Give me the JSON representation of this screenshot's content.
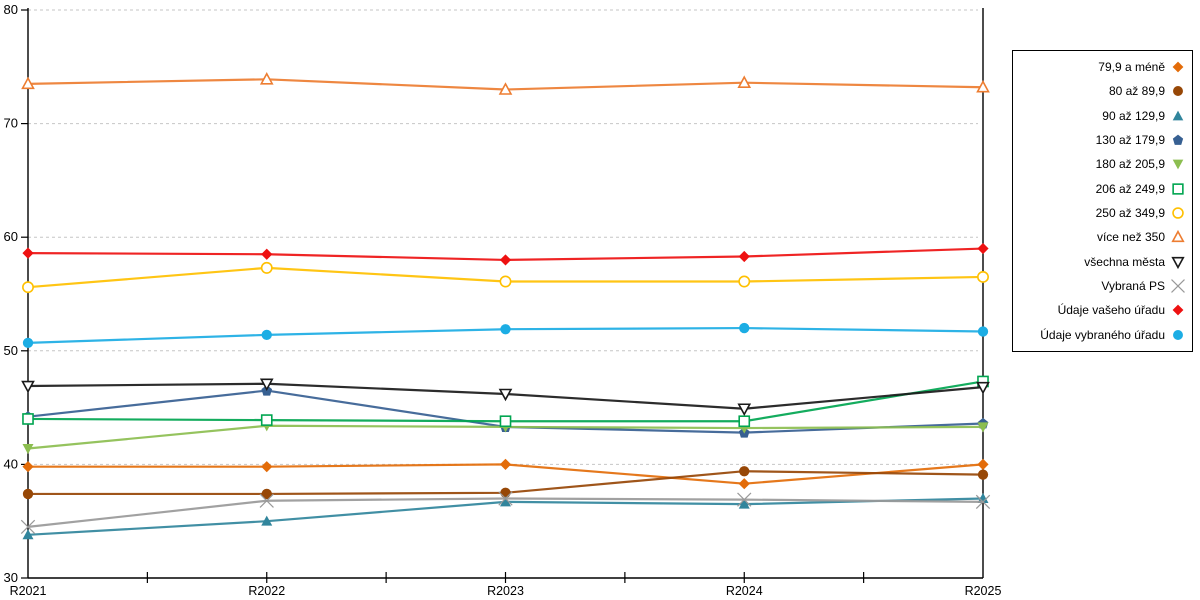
{
  "chart_data": {
    "type": "line",
    "x": [
      "R2021",
      "R2022",
      "R2023",
      "R2024",
      "R2025"
    ],
    "ylim": [
      30,
      80
    ],
    "yticks": [
      30,
      40,
      50,
      60,
      70,
      80
    ],
    "grid": "horizontal-dashed",
    "legend_position": "right-box",
    "highlight_vline_at": "R2025",
    "series": [
      {
        "name": "79,9 a méně",
        "marker": "diamond",
        "filled": true,
        "color": "#E36C09",
        "values": [
          39.8,
          39.8,
          40.0,
          38.3,
          40.0
        ]
      },
      {
        "name": "80 až 89,9",
        "marker": "circle",
        "filled": true,
        "color": "#974706",
        "values": [
          37.4,
          37.4,
          37.5,
          39.4,
          39.1
        ]
      },
      {
        "name": "90 až 129,9",
        "marker": "triangle-up",
        "filled": true,
        "color": "#31859C",
        "values": [
          33.8,
          35.0,
          36.7,
          36.5,
          37.0
        ]
      },
      {
        "name": "130 až 179,9",
        "marker": "pentagon",
        "filled": true,
        "color": "#376092",
        "values": [
          44.2,
          46.5,
          43.3,
          42.8,
          43.6
        ]
      },
      {
        "name": "180 až 205,9",
        "marker": "triangle-down",
        "filled": true,
        "color": "#8CBE50",
        "values": [
          41.4,
          43.4,
          43.3,
          43.2,
          43.3
        ]
      },
      {
        "name": "206 až 249,9",
        "marker": "square",
        "filled": false,
        "color": "#00A550",
        "values": [
          44.0,
          43.9,
          43.8,
          43.8,
          47.3
        ]
      },
      {
        "name": "250 až 349,9",
        "marker": "circle",
        "filled": false,
        "color": "#FFC000",
        "values": [
          55.6,
          57.3,
          56.1,
          56.1,
          56.5
        ]
      },
      {
        "name": "více než 350",
        "marker": "triangle-up",
        "filled": false,
        "color": "#ED7D31",
        "values": [
          73.5,
          73.9,
          73.0,
          73.6,
          73.2
        ]
      },
      {
        "name": "všechna města",
        "marker": "triangle-down",
        "filled": false,
        "color": "#1A1A1A",
        "values": [
          46.9,
          47.1,
          46.2,
          44.9,
          46.8
        ]
      },
      {
        "name": "Vybraná PS",
        "marker": "x",
        "filled": false,
        "color": "#999999",
        "values": [
          34.5,
          36.8,
          37.0,
          36.9,
          36.7
        ]
      },
      {
        "name": "Údaje vašeho úřadu",
        "marker": "diamond",
        "filled": true,
        "color": "#EE1111",
        "values": [
          58.6,
          58.5,
          58.0,
          58.3,
          59.0
        ]
      },
      {
        "name": "Údaje vybraného úřadu",
        "marker": "circle",
        "filled": true,
        "color": "#1CADE4",
        "values": [
          50.7,
          51.4,
          51.9,
          52.0,
          51.7
        ]
      }
    ]
  },
  "colors": {
    "background": "#FFFFFF",
    "axis": "#000000",
    "gridline": "#C6C6C6",
    "tick_label": "#000000",
    "legend_border": "#000000"
  },
  "layout_labels": {
    "y_axis_ticks": [
      "80",
      "70",
      "60",
      "50",
      "40",
      "30"
    ],
    "x_axis_ticks": [
      "R2021",
      "R2022",
      "R2023",
      "R2024",
      "R2025"
    ]
  }
}
